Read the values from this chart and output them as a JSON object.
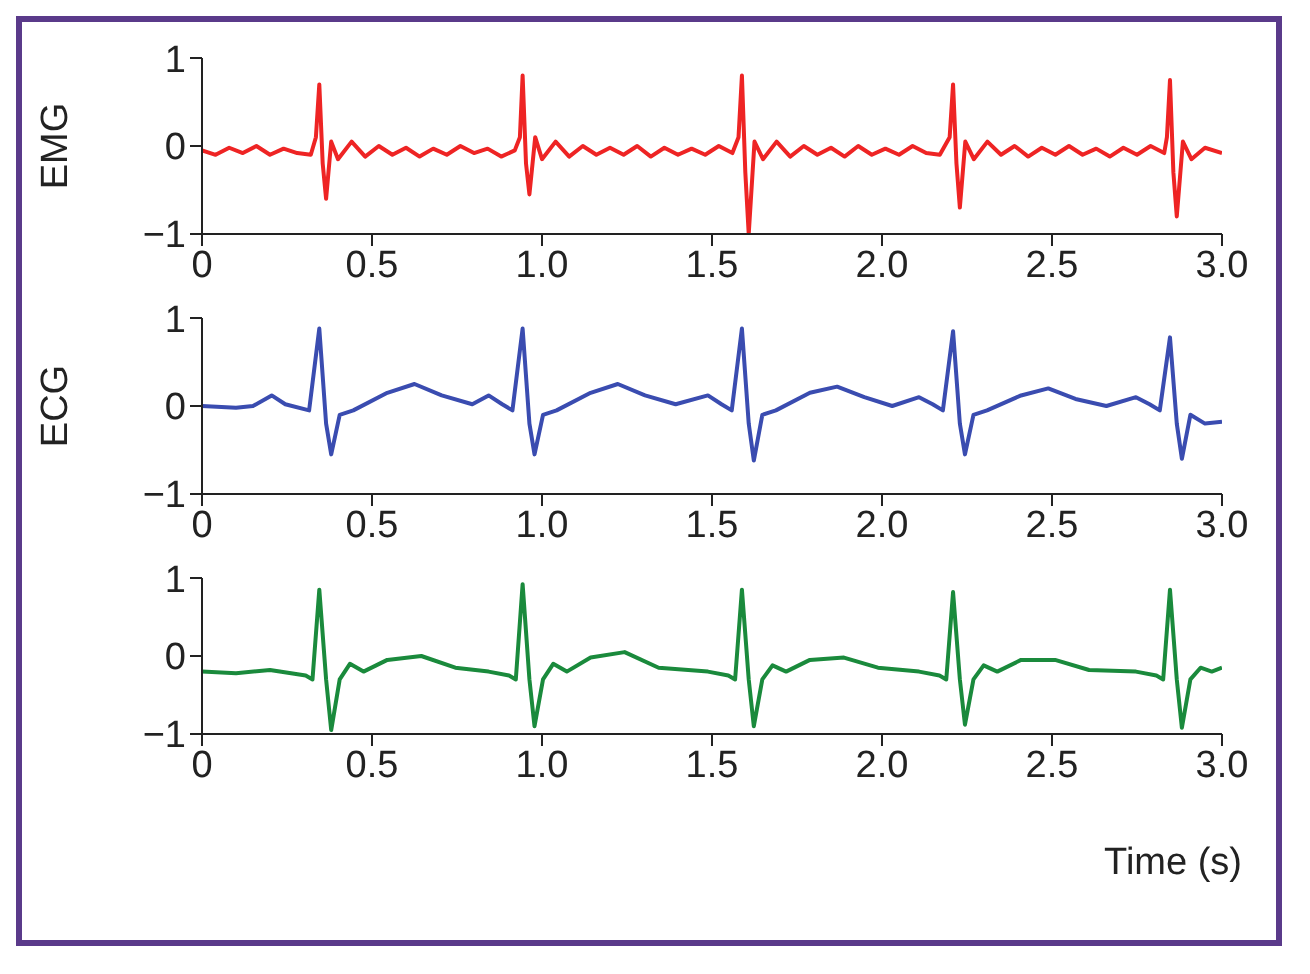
{
  "chart_data": [
    {
      "type": "line",
      "ylabel": "EMG",
      "xlim": [
        0,
        3
      ],
      "ylim": [
        -1,
        1
      ],
      "xticks": [
        {
          "value": 0,
          "label": "0"
        },
        {
          "value": 0.5,
          "label": "0.5"
        },
        {
          "value": 1,
          "label": "1.0"
        },
        {
          "value": 1.5,
          "label": "1.5"
        },
        {
          "value": 2,
          "label": "2.0"
        },
        {
          "value": 2.5,
          "label": "2.5"
        },
        {
          "value": 3,
          "label": "3.0"
        }
      ],
      "yticks": [
        {
          "value": -1,
          "label": "−1"
        },
        {
          "value": 0,
          "label": "0"
        },
        {
          "value": 1,
          "label": "1"
        }
      ],
      "grid": false,
      "series": [
        {
          "color": "#ee2424",
          "x": [
            0,
            0.04,
            0.08,
            0.12,
            0.16,
            0.2,
            0.24,
            0.28,
            0.32,
            0.335,
            0.345,
            0.355,
            0.365,
            0.38,
            0.4,
            0.44,
            0.48,
            0.52,
            0.56,
            0.6,
            0.64,
            0.68,
            0.72,
            0.76,
            0.8,
            0.84,
            0.88,
            0.92,
            0.935,
            0.943,
            0.953,
            0.963,
            0.98,
            1.0,
            1.04,
            1.08,
            1.12,
            1.16,
            1.2,
            1.24,
            1.28,
            1.32,
            1.36,
            1.4,
            1.44,
            1.48,
            1.52,
            1.56,
            1.578,
            1.588,
            1.598,
            1.608,
            1.625,
            1.65,
            1.69,
            1.73,
            1.77,
            1.81,
            1.85,
            1.89,
            1.93,
            1.97,
            2.01,
            2.05,
            2.09,
            2.13,
            2.17,
            2.199,
            2.209,
            2.219,
            2.229,
            2.245,
            2.27,
            2.31,
            2.35,
            2.39,
            2.43,
            2.47,
            2.51,
            2.55,
            2.59,
            2.63,
            2.67,
            2.71,
            2.75,
            2.79,
            2.83,
            2.838,
            2.847,
            2.857,
            2.867,
            2.885,
            2.91,
            2.95,
            3.0
          ],
          "values": [
            -0.05,
            -0.1,
            -0.02,
            -0.08,
            0.0,
            -0.1,
            -0.03,
            -0.08,
            -0.1,
            0.1,
            0.7,
            -0.2,
            -0.6,
            0.05,
            -0.15,
            0.05,
            -0.12,
            0.0,
            -0.1,
            -0.02,
            -0.12,
            -0.03,
            -0.1,
            0.0,
            -0.08,
            -0.03,
            -0.12,
            -0.05,
            0.1,
            0.8,
            -0.2,
            -0.55,
            0.1,
            -0.15,
            0.05,
            -0.12,
            0.0,
            -0.1,
            -0.02,
            -0.1,
            0.0,
            -0.12,
            -0.02,
            -0.1,
            -0.03,
            -0.1,
            0.0,
            -0.08,
            0.1,
            0.8,
            -0.3,
            -1.0,
            0.05,
            -0.15,
            0.05,
            -0.12,
            0.0,
            -0.1,
            -0.02,
            -0.12,
            0.0,
            -0.1,
            -0.03,
            -0.1,
            0.0,
            -0.08,
            -0.1,
            0.1,
            0.7,
            -0.2,
            -0.7,
            0.05,
            -0.15,
            0.05,
            -0.1,
            0.0,
            -0.12,
            -0.02,
            -0.1,
            0.0,
            -0.1,
            -0.03,
            -0.12,
            -0.02,
            -0.1,
            0.0,
            -0.08,
            0.1,
            0.75,
            -0.3,
            -0.8,
            0.05,
            -0.15,
            -0.02,
            -0.08
          ]
        }
      ]
    },
    {
      "type": "line",
      "ylabel": "ECG",
      "xlim": [
        0,
        3
      ],
      "ylim": [
        -1,
        1
      ],
      "xticks": [
        {
          "value": 0,
          "label": "0"
        },
        {
          "value": 0.5,
          "label": "0.5"
        },
        {
          "value": 1,
          "label": "1.0"
        },
        {
          "value": 1.5,
          "label": "1.5"
        },
        {
          "value": 2,
          "label": "2.0"
        },
        {
          "value": 2.5,
          "label": "2.5"
        },
        {
          "value": 3,
          "label": "3.0"
        }
      ],
      "yticks": [
        {
          "value": -1,
          "label": "−1"
        },
        {
          "value": 0,
          "label": "0"
        },
        {
          "value": 1,
          "label": "1"
        }
      ],
      "grid": false,
      "series": [
        {
          "color": "#3a4cb0",
          "x": [
            0,
            0.1,
            0.15,
            0.205,
            0.245,
            0.315,
            0.345,
            0.365,
            0.38,
            0.405,
            0.445,
            0.545,
            0.625,
            0.705,
            0.795,
            0.843,
            0.883,
            0.913,
            0.943,
            0.963,
            0.978,
            1.003,
            1.043,
            1.143,
            1.223,
            1.303,
            1.393,
            1.488,
            1.528,
            1.558,
            1.588,
            1.608,
            1.623,
            1.648,
            1.688,
            1.788,
            1.868,
            1.948,
            2.03,
            2.109,
            2.149,
            2.179,
            2.209,
            2.229,
            2.244,
            2.269,
            2.309,
            2.409,
            2.489,
            2.569,
            2.66,
            2.747,
            2.787,
            2.817,
            2.847,
            2.867,
            2.882,
            2.907,
            2.95,
            3.0
          ],
          "values": [
            0.0,
            -0.02,
            0.0,
            0.12,
            0.02,
            -0.05,
            0.88,
            -0.2,
            -0.55,
            -0.1,
            -0.05,
            0.15,
            0.25,
            0.12,
            0.02,
            0.12,
            0.02,
            -0.05,
            0.88,
            -0.2,
            -0.55,
            -0.1,
            -0.05,
            0.15,
            0.25,
            0.12,
            0.02,
            0.12,
            0.02,
            -0.05,
            0.88,
            -0.2,
            -0.62,
            -0.1,
            -0.05,
            0.15,
            0.22,
            0.1,
            0.0,
            0.1,
            0.02,
            -0.05,
            0.85,
            -0.2,
            -0.55,
            -0.1,
            -0.05,
            0.12,
            0.2,
            0.08,
            0.0,
            0.1,
            0.02,
            -0.05,
            0.78,
            -0.2,
            -0.6,
            -0.1,
            -0.2,
            -0.18
          ]
        }
      ]
    },
    {
      "type": "line",
      "xlabel": "Time (s)",
      "xlim": [
        0,
        3
      ],
      "ylim": [
        -1,
        1
      ],
      "xticks": [
        {
          "value": 0,
          "label": "0"
        },
        {
          "value": 0.5,
          "label": "0.5"
        },
        {
          "value": 1,
          "label": "1.0"
        },
        {
          "value": 1.5,
          "label": "1.5"
        },
        {
          "value": 2,
          "label": "2.0"
        },
        {
          "value": 2.5,
          "label": "2.5"
        },
        {
          "value": 3,
          "label": "3.0"
        }
      ],
      "yticks": [
        {
          "value": -1,
          "label": "−1"
        },
        {
          "value": 0,
          "label": "0"
        },
        {
          "value": 1,
          "label": "1"
        }
      ],
      "grid": false,
      "series": [
        {
          "color": "#1a8a3c",
          "x": [
            0,
            0.1,
            0.2,
            0.305,
            0.325,
            0.345,
            0.365,
            0.38,
            0.405,
            0.435,
            0.475,
            0.545,
            0.645,
            0.745,
            0.843,
            0.903,
            0.923,
            0.943,
            0.963,
            0.978,
            1.003,
            1.033,
            1.073,
            1.143,
            1.243,
            1.343,
            1.488,
            1.548,
            1.568,
            1.588,
            1.608,
            1.623,
            1.648,
            1.678,
            1.718,
            1.788,
            1.888,
            1.988,
            2.109,
            2.169,
            2.189,
            2.209,
            2.229,
            2.244,
            2.269,
            2.299,
            2.339,
            2.409,
            2.509,
            2.609,
            2.747,
            2.807,
            2.827,
            2.847,
            2.867,
            2.882,
            2.907,
            2.937,
            2.97,
            3.0
          ],
          "values": [
            -0.2,
            -0.22,
            -0.18,
            -0.25,
            -0.3,
            0.85,
            -0.3,
            -0.95,
            -0.3,
            -0.1,
            -0.2,
            -0.05,
            0.0,
            -0.15,
            -0.2,
            -0.25,
            -0.3,
            0.92,
            -0.3,
            -0.9,
            -0.3,
            -0.1,
            -0.2,
            -0.02,
            0.05,
            -0.15,
            -0.2,
            -0.25,
            -0.3,
            0.85,
            -0.3,
            -0.9,
            -0.3,
            -0.12,
            -0.2,
            -0.05,
            -0.02,
            -0.15,
            -0.2,
            -0.25,
            -0.3,
            0.82,
            -0.3,
            -0.88,
            -0.3,
            -0.12,
            -0.2,
            -0.05,
            -0.05,
            -0.18,
            -0.2,
            -0.25,
            -0.3,
            0.85,
            -0.3,
            -0.92,
            -0.3,
            -0.15,
            -0.2,
            -0.15
          ]
        }
      ]
    }
  ]
}
